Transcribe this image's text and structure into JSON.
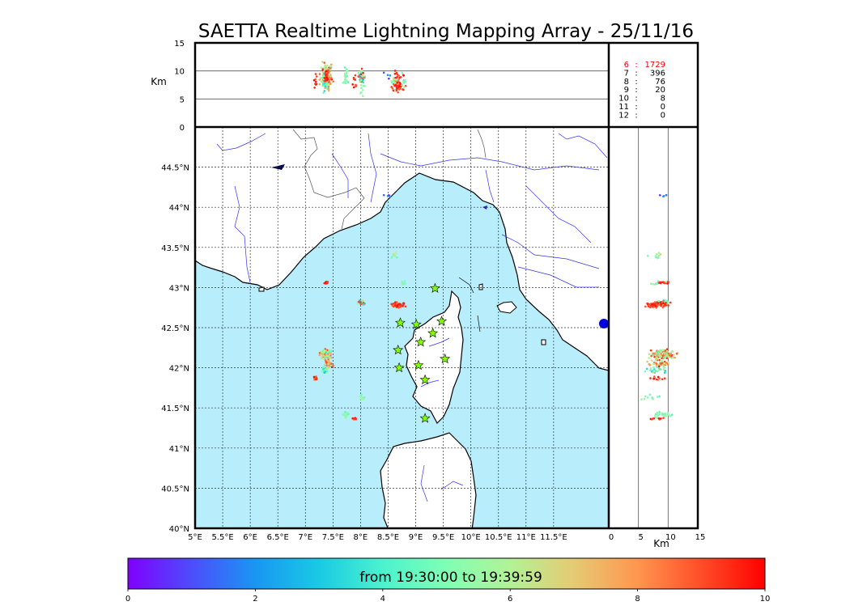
{
  "title": "SAETTA Realtime Lightning Mapping Array - 25/11/16",
  "chart_data": {
    "type": "scatter",
    "title": "SAETTA Realtime Lightning Mapping Array - 25/11/16",
    "map": {
      "xlim": [
        5,
        12.5
      ],
      "ylim": [
        40,
        45
      ],
      "x_ticks": [
        "5°E",
        "5.5°E",
        "6°E",
        "6.5°E",
        "7°E",
        "7.5°E",
        "8°E",
        "8.5°E",
        "9°E",
        "9.5°E",
        "10°E",
        "10.5°E",
        "11°E",
        "11.5°E"
      ],
      "x_tick_values": [
        5,
        5.5,
        6,
        6.5,
        7,
        7.5,
        8,
        8.5,
        9,
        9.5,
        10,
        10.5,
        11,
        11.5
      ],
      "y_ticks": [
        "40°N",
        "40.5°N",
        "41°N",
        "41.5°N",
        "42°N",
        "42.5°N",
        "43°N",
        "43.5°N",
        "44°N",
        "44.5°N"
      ],
      "y_tick_values": [
        40,
        40.5,
        41,
        41.5,
        42,
        42.5,
        43,
        43.5,
        44,
        44.5
      ],
      "grid": true,
      "sea_color": "#b8edfb",
      "river_color": "#3333ff",
      "border_color": "#555555",
      "station_color": "#80ff00",
      "station_label": "☆",
      "stations": [
        [
          8.72,
          42.56
        ],
        [
          9.01,
          42.54
        ],
        [
          9.35,
          42.99
        ],
        [
          9.47,
          42.58
        ],
        [
          9.31,
          42.43
        ],
        [
          9.09,
          42.32
        ],
        [
          8.68,
          42.22
        ],
        [
          9.53,
          42.11
        ],
        [
          8.7,
          42.0
        ],
        [
          9.05,
          42.03
        ],
        [
          9.17,
          41.85
        ],
        [
          9.17,
          41.37
        ]
      ]
    },
    "clusters": [
      {
        "lon": 7.37,
        "lat": 42.17,
        "rlon": 0.13,
        "rlat": 0.08,
        "alt": 9,
        "ralt": 3,
        "n": 150,
        "tmin": 4,
        "tmax": 10
      },
      {
        "lon": 7.42,
        "lat": 42.05,
        "rlon": 0.1,
        "rlat": 0.06,
        "alt": 8.5,
        "ralt": 2.5,
        "n": 50,
        "tmin": 5,
        "tmax": 10
      },
      {
        "lon": 7.35,
        "lat": 41.97,
        "rlon": 0.07,
        "rlat": 0.06,
        "alt": 8,
        "ralt": 3,
        "n": 25,
        "tmin": 3,
        "tmax": 6
      },
      {
        "lon": 7.18,
        "lat": 41.87,
        "rlon": 0.04,
        "rlat": 0.03,
        "alt": 8,
        "ralt": 2,
        "n": 12,
        "tmin": 8,
        "tmax": 10
      },
      {
        "lon": 7.37,
        "lat": 43.06,
        "rlon": 0.05,
        "rlat": 0.02,
        "alt": 9,
        "ralt": 2,
        "n": 20,
        "tmin": 9,
        "tmax": 10
      },
      {
        "lon": 8.01,
        "lat": 42.81,
        "rlon": 0.08,
        "rlat": 0.04,
        "alt": 9,
        "ralt": 2,
        "n": 45,
        "tmin": 2,
        "tmax": 10
      },
      {
        "lon": 8.67,
        "lat": 42.78,
        "rlon": 0.18,
        "rlat": 0.05,
        "alt": 8,
        "ralt": 2.5,
        "n": 60,
        "tmin": 8.5,
        "tmax": 10
      },
      {
        "lon": 7.74,
        "lat": 41.42,
        "rlon": 0.08,
        "rlat": 0.06,
        "alt": 9,
        "ralt": 2,
        "n": 25,
        "tmin": 4,
        "tmax": 6
      },
      {
        "lon": 7.89,
        "lat": 41.37,
        "rlon": 0.04,
        "rlat": 0.02,
        "alt": 8,
        "ralt": 1.5,
        "n": 8,
        "tmin": 9,
        "tmax": 10
      },
      {
        "lon": 8.03,
        "lat": 41.62,
        "rlon": 0.06,
        "rlat": 0.06,
        "alt": 7,
        "ralt": 2,
        "n": 10,
        "tmin": 4,
        "tmax": 6
      },
      {
        "lon": 8.62,
        "lat": 43.4,
        "rlon": 0.08,
        "rlat": 0.1,
        "alt": 8,
        "ralt": 2,
        "n": 10,
        "tmin": 4.5,
        "tmax": 6.5
      },
      {
        "lon": 8.77,
        "lat": 43.05,
        "rlon": 0.1,
        "rlat": 0.05,
        "alt": 8,
        "ralt": 2,
        "n": 8,
        "tmin": 4.5,
        "tmax": 6.5
      },
      {
        "lon": 8.5,
        "lat": 44.15,
        "rlon": 0.2,
        "rlat": 0.03,
        "alt": 9,
        "ralt": 1,
        "n": 4,
        "tmin": 0.5,
        "tmax": 2
      }
    ],
    "counts": [
      {
        "label": "6",
        "value": "1729"
      },
      {
        "label": "7",
        "value": "396"
      },
      {
        "label": "8",
        "value": "76"
      },
      {
        "label": "9",
        "value": "20"
      },
      {
        "label": "10",
        "value": "8"
      },
      {
        "label": "11",
        "value": "0"
      },
      {
        "label": "12",
        "value": "0"
      }
    ],
    "counts_highlight_color": "#ff0000",
    "altitude": {
      "unit": "Km",
      "range": [
        0,
        15
      ],
      "ticks": [
        "0",
        "5",
        "10",
        "15"
      ],
      "tick_values": [
        0,
        5,
        10,
        15
      ],
      "reference_lines": [
        5,
        10
      ]
    },
    "colorbar": {
      "label": "from 19:30:00 to 19:39:59",
      "range": [
        0,
        10
      ],
      "ticks": [
        "0",
        "2",
        "4",
        "6",
        "8",
        "10"
      ],
      "tick_values": [
        0,
        2,
        4,
        6,
        8,
        10
      ],
      "colormap": "rainbow"
    }
  }
}
